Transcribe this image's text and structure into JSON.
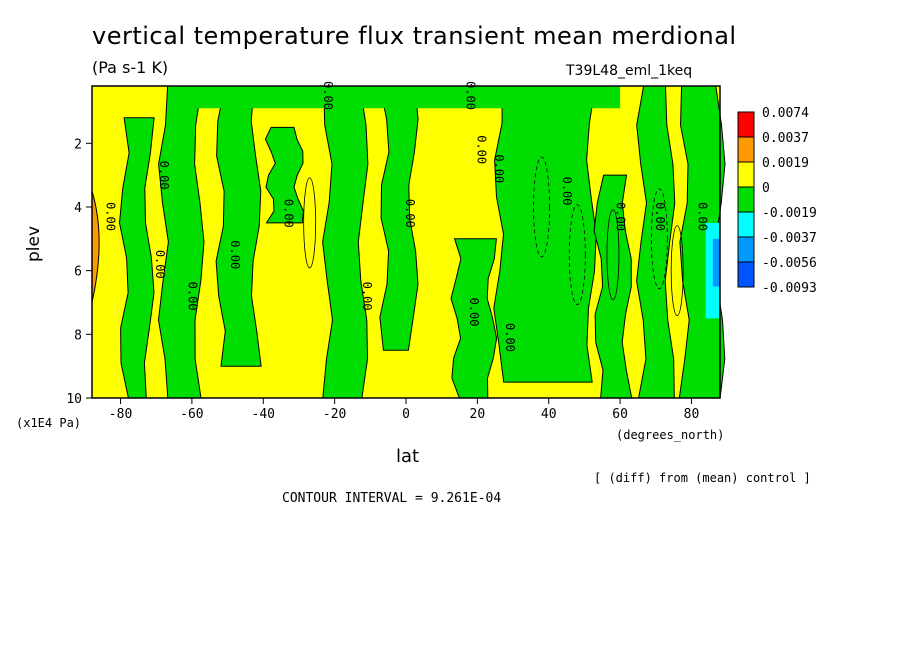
{
  "chart_data": {
    "type": "heatmap",
    "title": "vertical temperature flux transient mean merdional",
    "units": "(Pa s-1 K)",
    "run_label": "T39L48_eml_1keq",
    "xlabel": "lat",
    "x_units": "(degrees_north)",
    "ylabel": "plev",
    "y_units": "(x1E4 Pa)",
    "xlim": [
      -88,
      88
    ],
    "ylim": [
      10,
      0.2
    ],
    "x_ticks": [
      "-80",
      "-60",
      "-40",
      "-20",
      "0",
      "20",
      "40",
      "60",
      "80"
    ],
    "x_tick_values": [
      -80,
      -60,
      -40,
      -20,
      0,
      20,
      40,
      60,
      80
    ],
    "y_ticks": [
      "2",
      "4",
      "6",
      "8",
      "10"
    ],
    "y_tick_values": [
      2,
      4,
      6,
      8,
      10
    ],
    "contour_interval_text": "CONTOUR INTERVAL = 9.261E-04",
    "diff_note": "[ (diff) from (mean) control ]",
    "contour_labels": [
      "0.00",
      "0.00",
      "0.00",
      "0.00",
      "0.00",
      "0.00",
      "0.00",
      "0.00",
      "0.00",
      "0.00",
      "0.00",
      "0.00",
      "0.00",
      "0.00",
      "0.00",
      "0.00",
      "0.00",
      "0.00"
    ],
    "colorbar": {
      "labels": [
        "0.0074",
        "0.0037",
        "0.0019",
        "0",
        "-0.0019",
        "-0.0037",
        "-0.0056",
        "-0.0093"
      ],
      "colors": [
        "#ff0000",
        "#ff9900",
        "#ffff00",
        "#00dd00",
        "#00ffff",
        "#0099ff",
        "#0055ff"
      ]
    },
    "field_colors": {
      "positive_weak": "#ffff00",
      "positive_mid": "#ff9900",
      "negative_weak": "#00dd00",
      "negative_mid": "#00ffff",
      "negative_strong": "#0099ff"
    },
    "green_bands_lat": [
      {
        "lat_min": -79,
        "lat_max": -72,
        "plev_top": 1.2,
        "plev_bottom": 10
      },
      {
        "lat_min": -68,
        "lat_max": -58,
        "plev_top": 0.2,
        "plev_bottom": 10
      },
      {
        "lat_min": -52,
        "lat_max": -42,
        "plev_top": 0.2,
        "plev_bottom": 9.0
      },
      {
        "lat_min": -38,
        "lat_max": -30,
        "plev_top": 1.5,
        "plev_bottom": 4.5
      },
      {
        "lat_min": -22,
        "lat_max": -12,
        "plev_top": 0.2,
        "plev_bottom": 10
      },
      {
        "lat_min": -6,
        "lat_max": 2,
        "plev_top": 0.2,
        "plev_bottom": 8.5
      },
      {
        "lat_min": 14,
        "lat_max": 24,
        "plev_top": 5.0,
        "plev_bottom": 10
      },
      {
        "lat_min": 26,
        "lat_max": 52,
        "plev_top": 0.2,
        "plev_bottom": 9.5
      },
      {
        "lat_min": 54,
        "lat_max": 62,
        "plev_top": 3.0,
        "plev_bottom": 10
      },
      {
        "lat_min": 66,
        "lat_max": 74,
        "plev_top": 0.2,
        "plev_bottom": 10
      },
      {
        "lat_min": 78,
        "lat_max": 88,
        "plev_top": 0.2,
        "plev_bottom": 10
      }
    ]
  }
}
